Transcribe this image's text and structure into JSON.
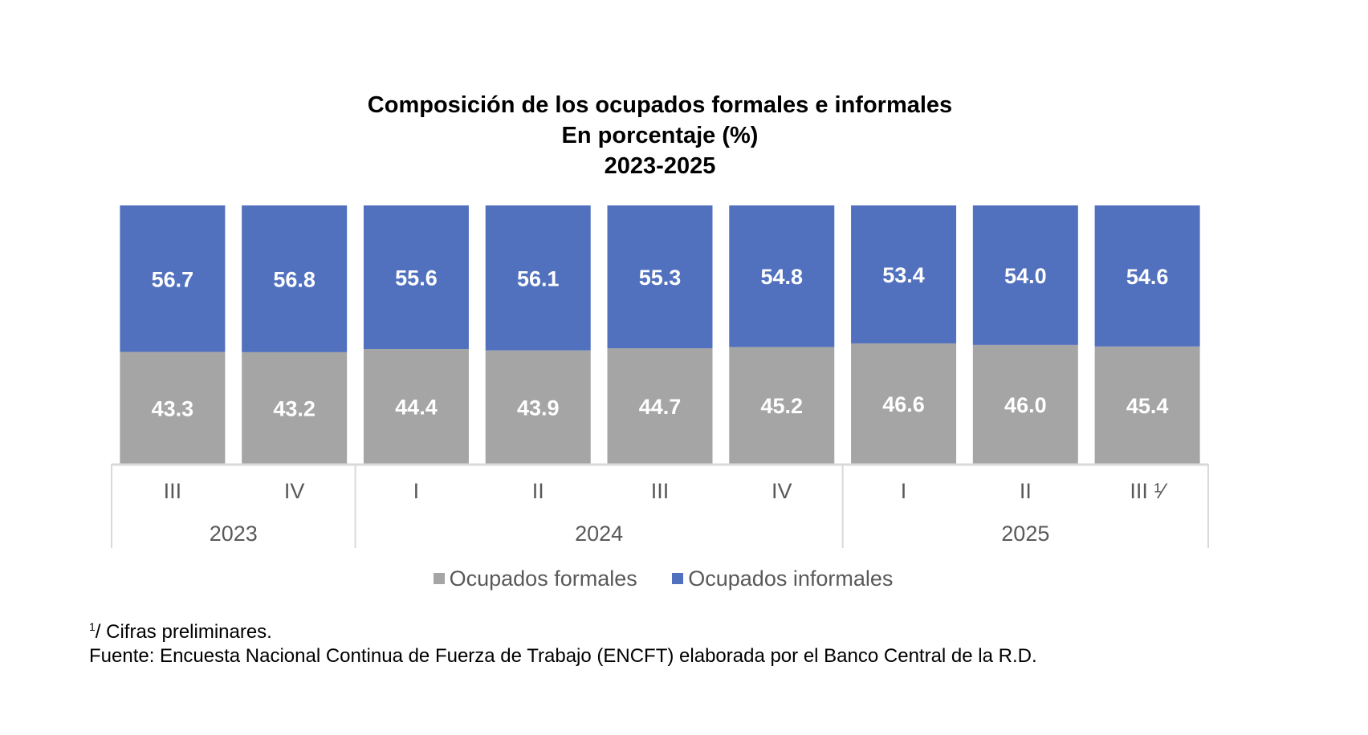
{
  "chart_data": {
    "type": "bar",
    "stacked": true,
    "percent_stacked": true,
    "title": "Composición de los ocupados formales e informales",
    "subtitle": "En porcentaje (%)",
    "period": "2023-2025",
    "categories": [
      "III",
      "IV",
      "I",
      "II",
      "III",
      "IV",
      "I",
      "II",
      "III 1/"
    ],
    "category_display": [
      "III",
      "IV",
      "I",
      "II",
      "III",
      "IV",
      "I",
      "II",
      "III ¹⁄"
    ],
    "groups": [
      {
        "label": "2023",
        "count": 2
      },
      {
        "label": "2024",
        "count": 4
      },
      {
        "label": "2025",
        "count": 3
      }
    ],
    "series": [
      {
        "name": "Ocupados formales",
        "color": "#a5a5a5",
        "values": [
          43.3,
          43.2,
          44.4,
          43.9,
          44.7,
          45.2,
          46.6,
          46.0,
          45.4
        ]
      },
      {
        "name": "Ocupados informales",
        "color": "#5171be",
        "values": [
          56.7,
          56.8,
          55.6,
          56.1,
          55.3,
          54.8,
          53.4,
          54.0,
          54.6
        ]
      }
    ],
    "ylim": [
      0,
      100
    ],
    "grid": false,
    "legend_position": "bottom",
    "xlabel": "",
    "ylabel": ""
  },
  "footnotes": {
    "note_marker": "1",
    "note_text": "/ Cifras preliminares.",
    "source": "Fuente: Encuesta Nacional Continua de Fuerza de Trabajo (ENCFT) elaborada por el Banco Central de la R.D."
  }
}
